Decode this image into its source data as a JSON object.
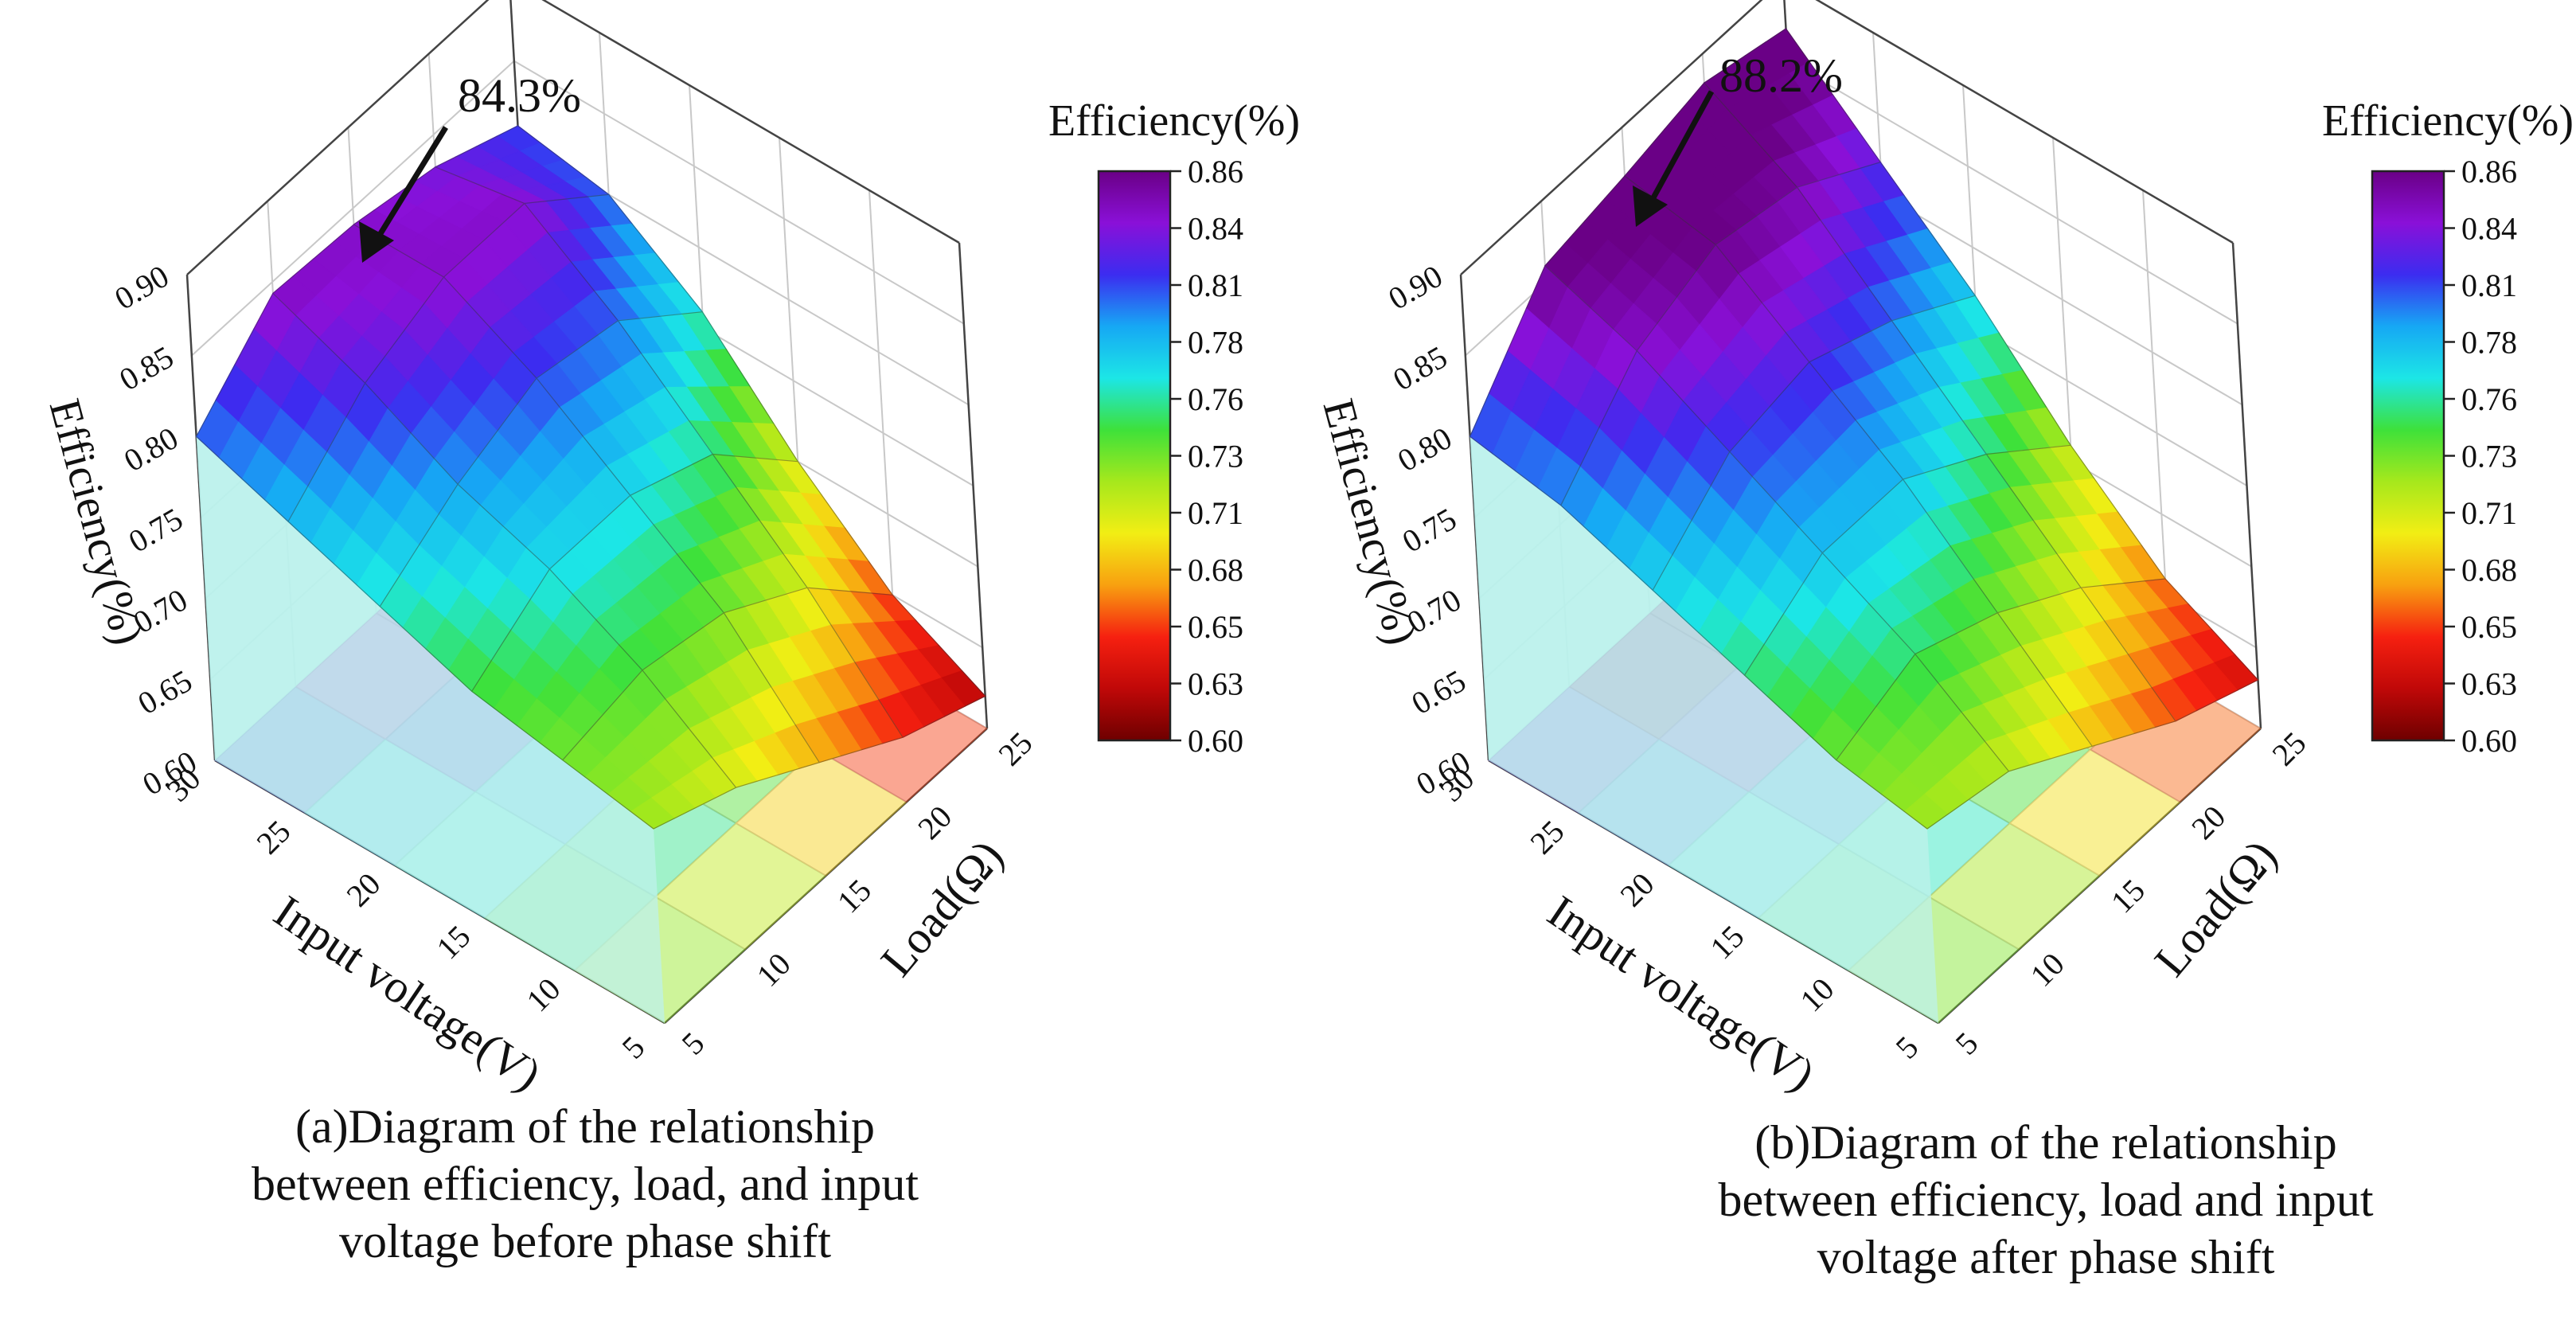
{
  "figure": {
    "colorbar_title": "Efficiency(%)",
    "colorbar_ticks": [
      "0.86",
      "0.84",
      "0.81",
      "0.78",
      "0.76",
      "0.73",
      "0.71",
      "0.68",
      "0.65",
      "0.63",
      "0.60"
    ],
    "colorbar_stops": [
      "#6a0086",
      "#8a10d8",
      "#3c2cf0",
      "#16a8f4",
      "#1ce6e6",
      "#3ee13a",
      "#a6e81c",
      "#f2ee14",
      "#f8a010",
      "#f62010",
      "#c00808",
      "#6e0000"
    ]
  },
  "chart_data": [
    {
      "type": "surface3d",
      "panel": "a",
      "zlabel": "Efficiency(%)",
      "xlabel": "Input voltage(V)",
      "ylabel": "Load(Ω)",
      "z_ticks": [
        "0.90",
        "0.85",
        "0.80",
        "0.75",
        "0.70",
        "0.65",
        "0.60"
      ],
      "z_range": [
        0.6,
        0.9
      ],
      "voltage_ticks": [
        "30",
        "25",
        "20",
        "15",
        "10",
        "5"
      ],
      "load_ticks": [
        "5",
        "10",
        "15",
        "20",
        "25"
      ],
      "annotation": "84.3%",
      "caption": [
        "(a)Diagram of the relationship",
        "between efficiency, load, and input",
        "voltage before phase shift"
      ],
      "voltage": [
        30,
        25,
        20,
        15,
        10,
        5
      ],
      "load": [
        5,
        10,
        15,
        20,
        25
      ],
      "efficiency": [
        [
          0.8,
          0.843,
          0.84,
          0.83,
          0.81
        ],
        [
          0.78,
          0.82,
          0.84,
          0.84,
          0.8
        ],
        [
          0.76,
          0.79,
          0.81,
          0.8,
          0.76
        ],
        [
          0.74,
          0.77,
          0.77,
          0.75,
          0.7
        ],
        [
          0.73,
          0.74,
          0.73,
          0.7,
          0.65
        ],
        [
          0.72,
          0.7,
          0.67,
          0.64,
          0.62
        ]
      ]
    },
    {
      "type": "surface3d",
      "panel": "b",
      "zlabel": "Efficiency(%)",
      "xlabel": "Input voltage(V)",
      "ylabel": "Load(Ω)",
      "z_ticks": [
        "0.90",
        "0.85",
        "0.80",
        "0.75",
        "0.70",
        "0.65",
        "0.60"
      ],
      "z_range": [
        0.6,
        0.9
      ],
      "voltage_ticks": [
        "30",
        "25",
        "20",
        "15",
        "10",
        "5"
      ],
      "load_ticks": [
        "5",
        "10",
        "15",
        "20",
        "25"
      ],
      "annotation": "88.2%",
      "caption": [
        "(b)Diagram of the relationship",
        "between efficiency, load and input",
        "voltage after phase shift"
      ],
      "voltage": [
        30,
        25,
        20,
        15,
        10,
        5
      ],
      "load": [
        5,
        10,
        15,
        20,
        25
      ],
      "efficiency": [
        [
          0.8,
          0.86,
          0.87,
          0.882,
          0.87
        ],
        [
          0.79,
          0.84,
          0.86,
          0.85,
          0.82
        ],
        [
          0.77,
          0.81,
          0.82,
          0.8,
          0.77
        ],
        [
          0.75,
          0.78,
          0.78,
          0.75,
          0.71
        ],
        [
          0.73,
          0.75,
          0.73,
          0.7,
          0.66
        ],
        [
          0.72,
          0.71,
          0.68,
          0.65,
          0.63
        ]
      ]
    }
  ]
}
